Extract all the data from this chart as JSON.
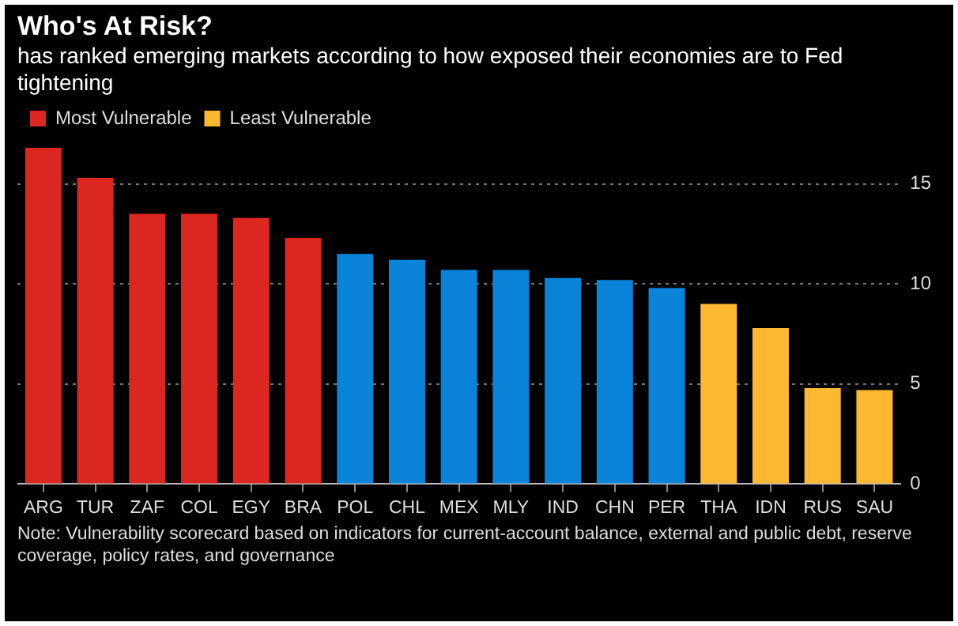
{
  "chart_data": {
    "type": "bar",
    "title": "Who's At Risk?",
    "subtitle": "has ranked emerging markets according to how exposed their economies are to Fed tightening",
    "categories": [
      "ARG",
      "TUR",
      "ZAF",
      "COL",
      "EGY",
      "BRA",
      "POL",
      "CHL",
      "MEX",
      "MLY",
      "IND",
      "CHN",
      "PER",
      "THA",
      "IDN",
      "RUS",
      "SAU"
    ],
    "series": [
      {
        "name": "Most Vulnerable",
        "color": "#dc2620",
        "values": [
          16.8,
          15.3,
          13.5,
          13.5,
          13.3,
          12.3,
          null,
          null,
          null,
          null,
          null,
          null,
          null,
          null,
          null,
          null,
          null
        ]
      },
      {
        "color": "#0a84d8",
        "values": [
          null,
          null,
          null,
          null,
          null,
          null,
          11.5,
          11.2,
          10.7,
          10.7,
          10.3,
          10.2,
          9.8,
          null,
          null,
          null,
          null
        ]
      },
      {
        "name": "Least Vulnerable",
        "color": "#fbb830",
        "values": [
          null,
          null,
          null,
          null,
          null,
          null,
          null,
          null,
          null,
          null,
          null,
          null,
          null,
          9.0,
          7.8,
          4.8,
          4.7
        ]
      }
    ],
    "ylim": [
      0,
      17
    ],
    "yticks": [
      0,
      5,
      10,
      15
    ],
    "grid": "y",
    "legend": "top left",
    "annotations": [
      "Note: Vulnerability scorecard based on indicators for current-account balance, external and public debt, reserve coverage, policy rates, and governance"
    ]
  }
}
